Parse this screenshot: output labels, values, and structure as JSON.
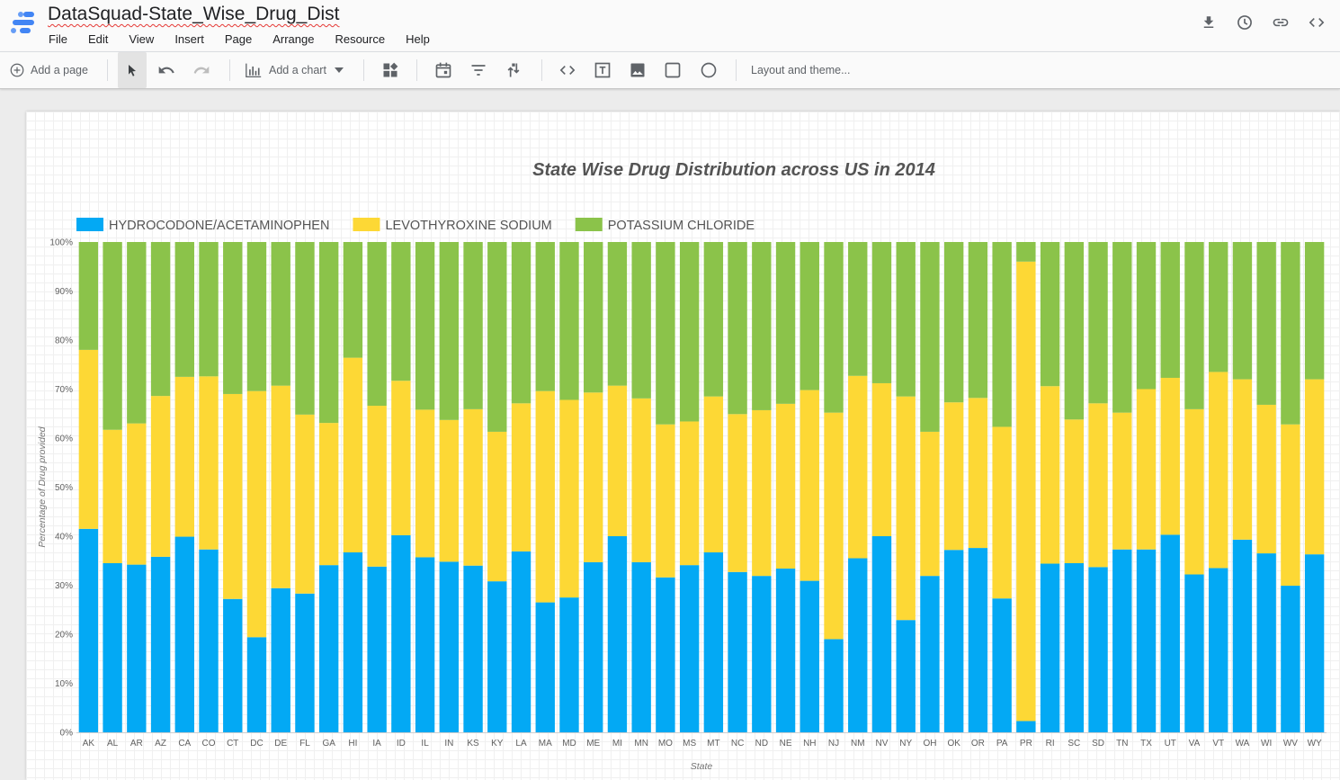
{
  "header": {
    "title": "DataSquad-State_Wise_Drug_Dist",
    "menu": [
      "File",
      "Edit",
      "View",
      "Insert",
      "Page",
      "Arrange",
      "Resource",
      "Help"
    ],
    "icons": [
      "download-icon",
      "history-icon",
      "link-icon",
      "embed-icon"
    ]
  },
  "toolbar": {
    "add_page": "Add a page",
    "add_chart": "Add a chart",
    "layout_theme": "Layout and theme..."
  },
  "chart_data": {
    "type": "bar",
    "stacked": "percent",
    "title": "State Wise Drug Distribution across US in 2014",
    "xlabel": "State",
    "ylabel": "Percentage of Drug provided",
    "ylim": [
      0,
      100
    ],
    "yticks": [
      "0%",
      "10%",
      "20%",
      "30%",
      "40%",
      "50%",
      "60%",
      "70%",
      "80%",
      "90%",
      "100%"
    ],
    "legend_position": "top-left",
    "grid": false,
    "categories": [
      "AK",
      "AL",
      "AR",
      "AZ",
      "CA",
      "CO",
      "CT",
      "DC",
      "DE",
      "FL",
      "GA",
      "HI",
      "IA",
      "ID",
      "IL",
      "IN",
      "KS",
      "KY",
      "LA",
      "MA",
      "MD",
      "ME",
      "MI",
      "MN",
      "MO",
      "MS",
      "MT",
      "NC",
      "ND",
      "NE",
      "NH",
      "NJ",
      "NM",
      "NV",
      "NY",
      "OH",
      "OK",
      "OR",
      "PA",
      "PR",
      "RI",
      "SC",
      "SD",
      "TN",
      "TX",
      "UT",
      "VA",
      "VT",
      "WA",
      "WI",
      "WV",
      "WY"
    ],
    "series": [
      {
        "name": "HYDROCODONE/ACETAMINOPHEN",
        "color": "#03a9f4",
        "values": [
          41.5,
          34.5,
          34.2,
          35.8,
          39.9,
          37.3,
          27.2,
          19.4,
          29.4,
          28.3,
          34.1,
          36.7,
          33.8,
          40.2,
          35.7,
          34.8,
          34.0,
          30.8,
          36.9,
          26.5,
          27.5,
          34.7,
          40.0,
          34.7,
          31.6,
          34.1,
          36.7,
          32.7,
          31.9,
          33.4,
          30.9,
          19.0,
          35.5,
          40.0,
          22.9,
          31.9,
          37.2,
          37.6,
          27.3,
          2.3,
          34.4,
          34.5,
          33.7,
          37.3,
          37.3,
          40.3,
          32.2,
          33.5,
          39.3,
          36.5,
          29.9,
          36.3
        ]
      },
      {
        "name": "LEVOTHYROXINE SODIUM",
        "color": "#fdd835",
        "values": [
          36.5,
          27.2,
          28.8,
          32.8,
          32.6,
          35.3,
          41.8,
          50.2,
          41.3,
          36.5,
          29.0,
          39.7,
          32.8,
          31.5,
          30.1,
          28.9,
          31.9,
          30.5,
          30.2,
          43.1,
          40.3,
          34.6,
          30.7,
          33.4,
          31.2,
          29.3,
          31.8,
          32.2,
          33.8,
          33.6,
          38.9,
          46.2,
          37.2,
          31.2,
          45.6,
          29.4,
          30.1,
          30.6,
          35.0,
          93.7,
          36.2,
          29.3,
          33.4,
          27.9,
          32.7,
          32.0,
          33.7,
          40.0,
          32.7,
          30.3,
          32.9,
          35.7
        ]
      },
      {
        "name": "POTASSIUM CHLORIDE",
        "color": "#8bc34a",
        "values": [
          22.0,
          38.3,
          37.0,
          31.4,
          27.5,
          27.4,
          31.0,
          30.4,
          29.3,
          35.2,
          36.9,
          23.6,
          33.4,
          28.3,
          34.2,
          36.3,
          34.1,
          38.7,
          32.9,
          30.4,
          32.2,
          30.7,
          29.3,
          31.9,
          37.2,
          36.6,
          31.5,
          35.1,
          34.3,
          33.0,
          30.2,
          34.8,
          27.3,
          28.8,
          31.5,
          38.7,
          32.7,
          31.8,
          37.7,
          4.0,
          29.4,
          36.2,
          32.9,
          34.8,
          30.0,
          27.7,
          34.1,
          26.5,
          28.0,
          33.2,
          37.2,
          28.0
        ]
      }
    ]
  }
}
